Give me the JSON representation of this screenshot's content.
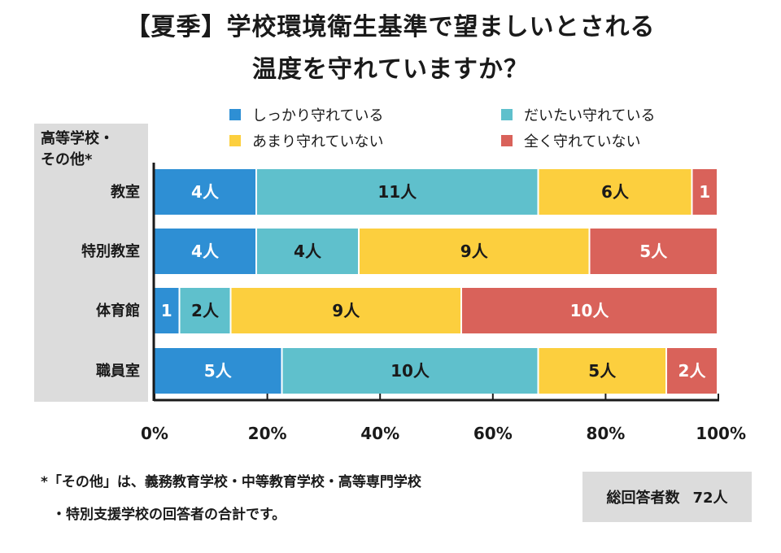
{
  "title_line1": "【夏季】学校環境衛生基準で望ましいとされる",
  "title_line2": "温度を守れていますか？",
  "group_label": "高等学校・\nその他*",
  "legend": [
    {
      "label": "しっかり守れている",
      "color": "#2e8fd4"
    },
    {
      "label": "だいたい守れている",
      "color": "#5fc0cc"
    },
    {
      "label": "あまり守れていない",
      "color": "#fccf3e"
    },
    {
      "label": "全く守れていない",
      "color": "#d9625a"
    }
  ],
  "chart_data": {
    "type": "bar",
    "orientation": "horizontal",
    "stacked": "percent",
    "categories": [
      "教室",
      "特別教室",
      "体育館",
      "職員室"
    ],
    "series": [
      {
        "name": "しっかり守れている",
        "color": "#2e8fd4",
        "values": [
          4,
          4,
          1,
          5
        ],
        "labels": [
          "4人",
          "4人",
          "1",
          "5人"
        ]
      },
      {
        "name": "だいたい守れている",
        "color": "#5fc0cc",
        "values": [
          11,
          4,
          2,
          10
        ],
        "labels": [
          "11人",
          "4人",
          "2人",
          "10人"
        ]
      },
      {
        "name": "あまり守れていない",
        "color": "#fccf3e",
        "values": [
          6,
          9,
          9,
          5
        ],
        "labels": [
          "6人",
          "9人",
          "9人",
          "5人"
        ]
      },
      {
        "name": "全く守れていない",
        "color": "#d9625a",
        "values": [
          1,
          5,
          10,
          2
        ],
        "labels": [
          "1",
          "5人",
          "10人",
          "2人"
        ]
      }
    ],
    "xlim": [
      0,
      100
    ],
    "xticks": [
      "0%",
      "20%",
      "40%",
      "60%",
      "80%",
      "100%"
    ],
    "legend_position": "top"
  },
  "note_line1": "*「その他」は、義務教育学校・中等教育学校・高等専門学校",
  "note_line2": "・特別支援学校の回答者の合計です。",
  "total_label": "総回答者数",
  "total_value": "72人"
}
